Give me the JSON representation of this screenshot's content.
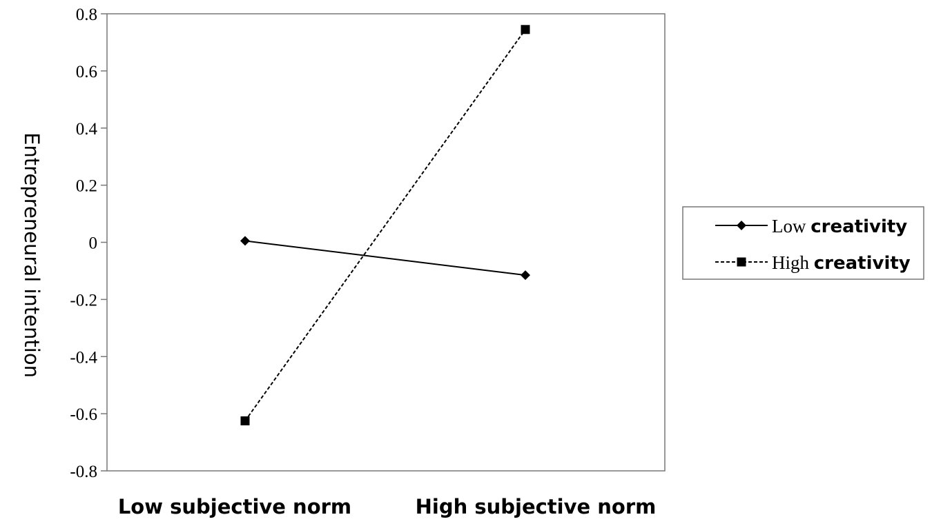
{
  "chart_data": {
    "type": "line",
    "categories": [
      "Low subjective norm",
      "High subjective norm"
    ],
    "series": [
      {
        "legend_word1": "Low",
        "legend_word2": "creativity",
        "values": [
          0.005,
          -0.115
        ],
        "line_style": "solid",
        "marker": "diamond"
      },
      {
        "legend_word1": "High",
        "legend_word2": "creativity",
        "values": [
          -0.625,
          0.745
        ],
        "line_style": "dashed",
        "marker": "square"
      }
    ],
    "ylabel": "Entrepreneural intention",
    "ylim": [
      -0.8,
      0.8
    ],
    "yticks": [
      "0.8",
      "0.6",
      "0.4",
      "0.2",
      "0",
      "-0.2",
      "-0.4",
      "-0.6",
      "-0.8"
    ],
    "grid": false,
    "legend_position": "right",
    "colors": {
      "line": "#000000",
      "axis": "#777777"
    }
  }
}
